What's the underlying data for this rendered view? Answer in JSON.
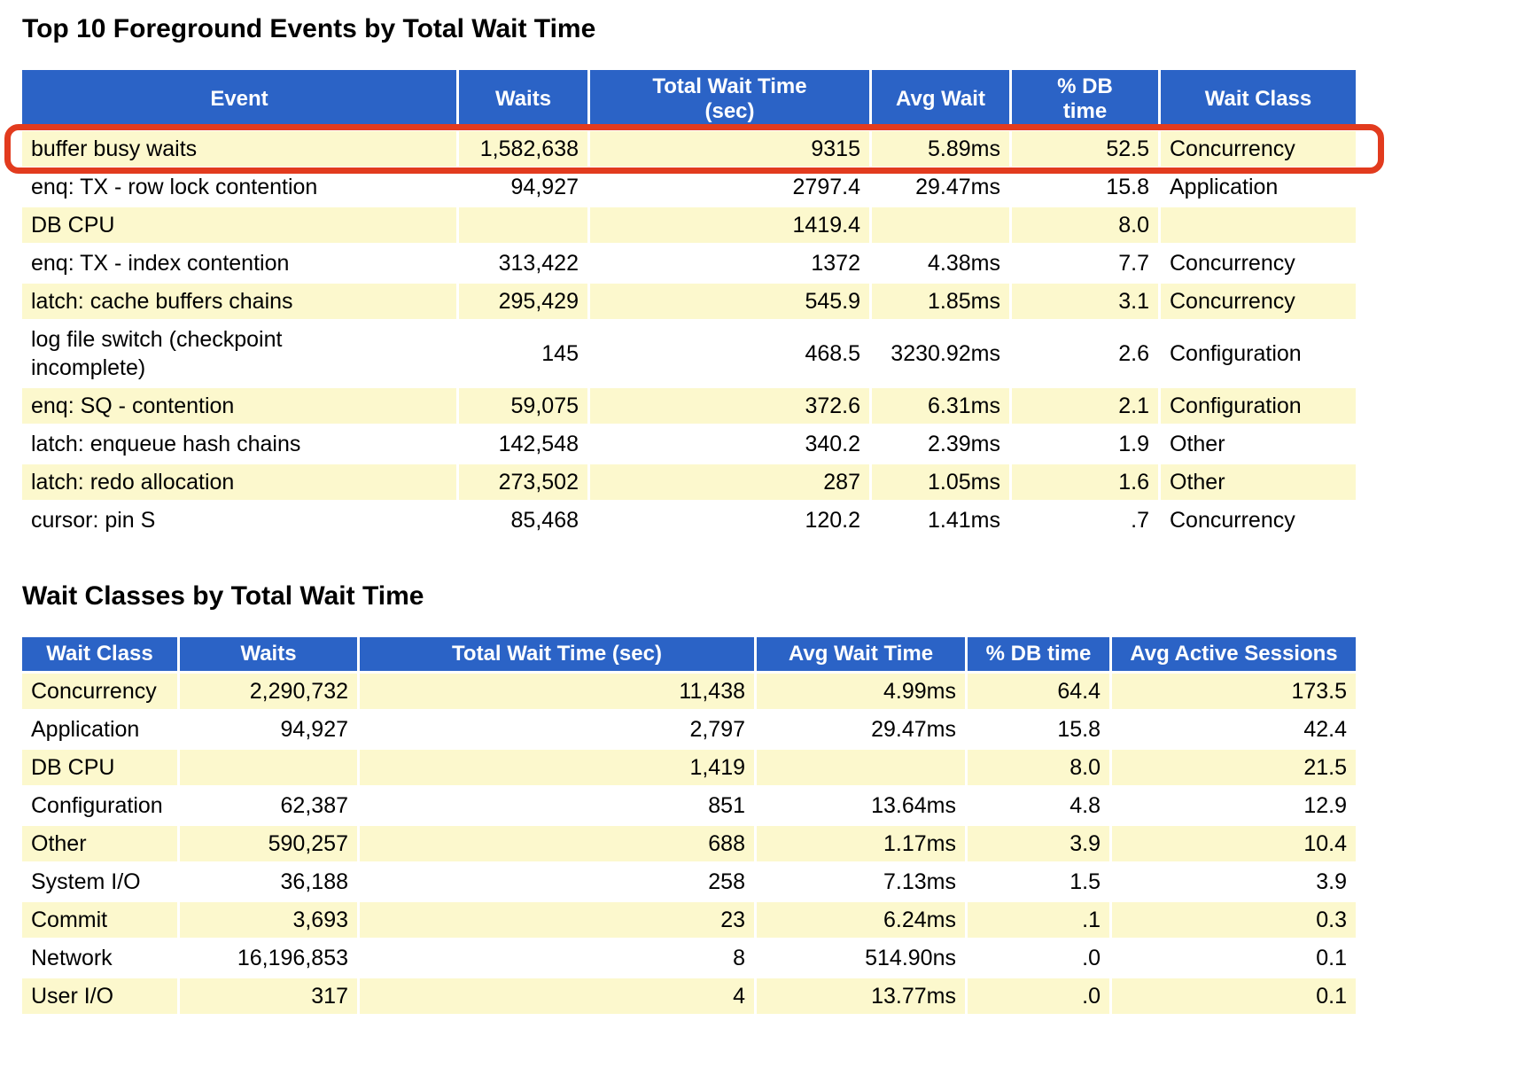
{
  "colors": {
    "header_bg": "#2b63c6",
    "header_text": "#ffffff",
    "row_odd_bg": "#fcf8cd",
    "row_even_bg": "#ffffff",
    "annotation_red": "#e23b1e",
    "text_color": "#000000",
    "page_bg": "#ffffff"
  },
  "annotation": {
    "type": "red-rounded-rectangle",
    "highlighted_row": "buffer busy waits",
    "section_index": 0,
    "row_index": 0
  },
  "sections": [
    {
      "title": "Top 10 Foreground Events by Total Wait Time",
      "columns": [
        "Event",
        "Waits",
        "Total Wait Time\n(sec)",
        "Avg Wait",
        "% DB\ntime",
        "Wait Class"
      ],
      "rows": [
        [
          "buffer busy waits",
          "1,582,638",
          "9315",
          "5.89ms",
          "52.5",
          "Concurrency"
        ],
        [
          "enq: TX - row lock contention",
          "94,927",
          "2797.4",
          "29.47ms",
          "15.8",
          "Application"
        ],
        [
          "DB CPU",
          "",
          "1419.4",
          "",
          "8.0",
          ""
        ],
        [
          "enq: TX - index contention",
          "313,422",
          "1372",
          "4.38ms",
          "7.7",
          "Concurrency"
        ],
        [
          "latch: cache buffers chains",
          "295,429",
          "545.9",
          "1.85ms",
          "3.1",
          "Concurrency"
        ],
        [
          "log file switch (checkpoint\nincomplete)",
          "145",
          "468.5",
          "3230.92ms",
          "2.6",
          "Configuration"
        ],
        [
          "enq: SQ - contention",
          "59,075",
          "372.6",
          "6.31ms",
          "2.1",
          "Configuration"
        ],
        [
          "latch: enqueue hash chains",
          "142,548",
          "340.2",
          "2.39ms",
          "1.9",
          "Other"
        ],
        [
          "latch: redo allocation",
          "273,502",
          "287",
          "1.05ms",
          "1.6",
          "Other"
        ],
        [
          "cursor: pin S",
          "85,468",
          "120.2",
          "1.41ms",
          ".7",
          "Concurrency"
        ]
      ]
    },
    {
      "title": "Wait Classes by Total Wait Time",
      "columns": [
        "Wait Class",
        "Waits",
        "Total Wait Time (sec)",
        "Avg Wait Time",
        "% DB time",
        "Avg Active Sessions"
      ],
      "rows": [
        [
          "Concurrency",
          "2,290,732",
          "11,438",
          "4.99ms",
          "64.4",
          "173.5"
        ],
        [
          "Application",
          "94,927",
          "2,797",
          "29.47ms",
          "15.8",
          "42.4"
        ],
        [
          "DB CPU",
          "",
          "1,419",
          "",
          "8.0",
          "21.5"
        ],
        [
          "Configuration",
          "62,387",
          "851",
          "13.64ms",
          "4.8",
          "12.9"
        ],
        [
          "Other",
          "590,257",
          "688",
          "1.17ms",
          "3.9",
          "10.4"
        ],
        [
          "System I/O",
          "36,188",
          "258",
          "7.13ms",
          "1.5",
          "3.9"
        ],
        [
          "Commit",
          "3,693",
          "23",
          "6.24ms",
          ".1",
          "0.3"
        ],
        [
          "Network",
          "16,196,853",
          "8",
          "514.90ns",
          ".0",
          "0.1"
        ],
        [
          "User I/O",
          "317",
          "4",
          "13.77ms",
          ".0",
          "0.1"
        ]
      ]
    }
  ]
}
